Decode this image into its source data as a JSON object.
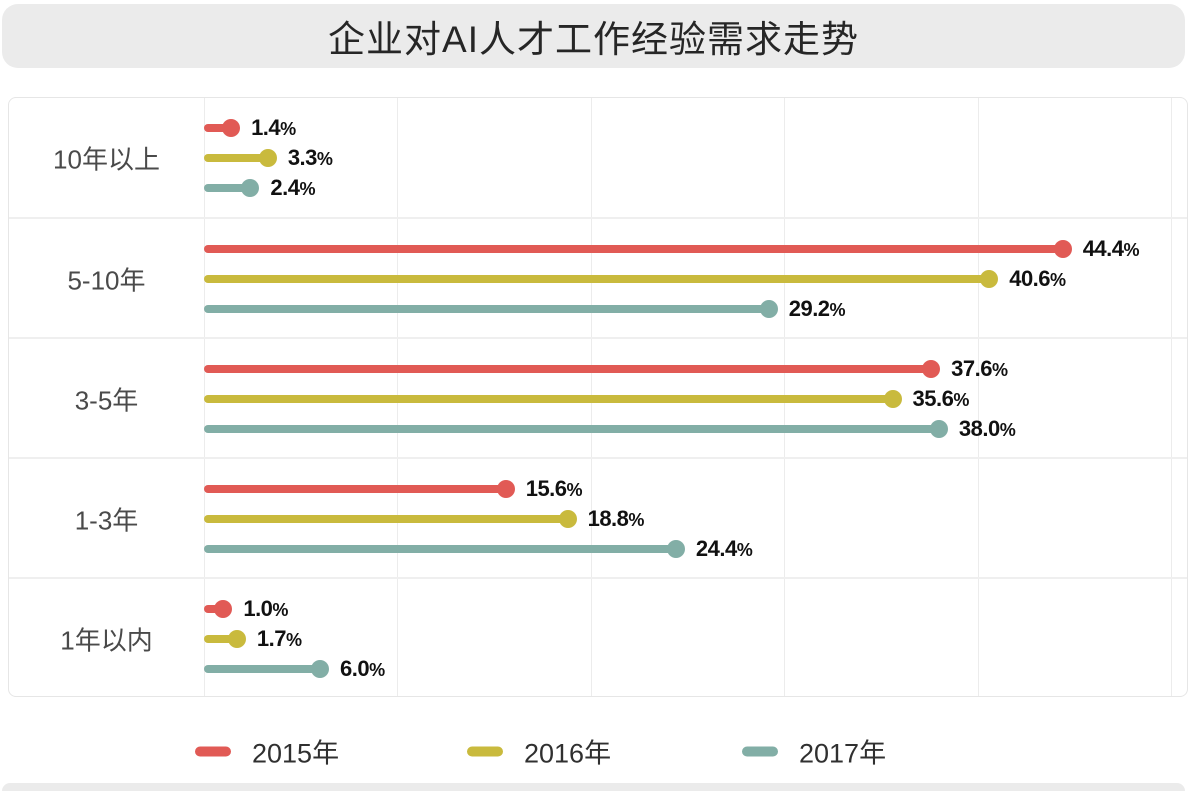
{
  "title": "企业对AI人才工作经验需求走势",
  "colors": {
    "title_bg": "#ebebeb",
    "panel_border": "#e6e6e6",
    "gridline": "#ececec",
    "series_2015": "#e15a55",
    "series_2016": "#c9ba3d",
    "series_2017": "#82aea6",
    "title_text": "#262626",
    "category_text": "#4a4a4a",
    "value_text": "#111111",
    "legend_text": "#303030"
  },
  "chart_data": {
    "type": "bar",
    "variant": "horizontal-lollipop",
    "title": "企业对AI人才工作经验需求走势",
    "categories": [
      "10年以上",
      "5-10年",
      "3-5年",
      "1-3年",
      "1年以内"
    ],
    "series": [
      {
        "name": "2015年",
        "color": "#e15a55",
        "values": [
          1.4,
          44.4,
          37.6,
          15.6,
          1.0
        ],
        "labels": [
          "1.4%",
          "44.4%",
          "37.6%",
          "15.6%",
          "1.0%"
        ]
      },
      {
        "name": "2016年",
        "color": "#c9ba3d",
        "values": [
          3.3,
          40.6,
          35.6,
          18.8,
          1.7
        ],
        "labels": [
          "3.3%",
          "40.6%",
          "35.6%",
          "18.8%",
          "1.7%"
        ]
      },
      {
        "name": "2017年",
        "color": "#82aea6",
        "values": [
          2.4,
          29.2,
          38.0,
          24.4,
          6.0
        ],
        "labels": [
          "2.4%",
          "29.2%",
          "38.0%",
          "24.4%",
          "6.0%"
        ]
      }
    ],
    "xlabel": "",
    "ylabel": "",
    "value_suffix": "%",
    "xlim": [
      0,
      51
    ],
    "gridline_values": [
      0,
      10,
      20,
      30,
      40,
      50
    ],
    "grid": true,
    "legend_position": "bottom"
  }
}
